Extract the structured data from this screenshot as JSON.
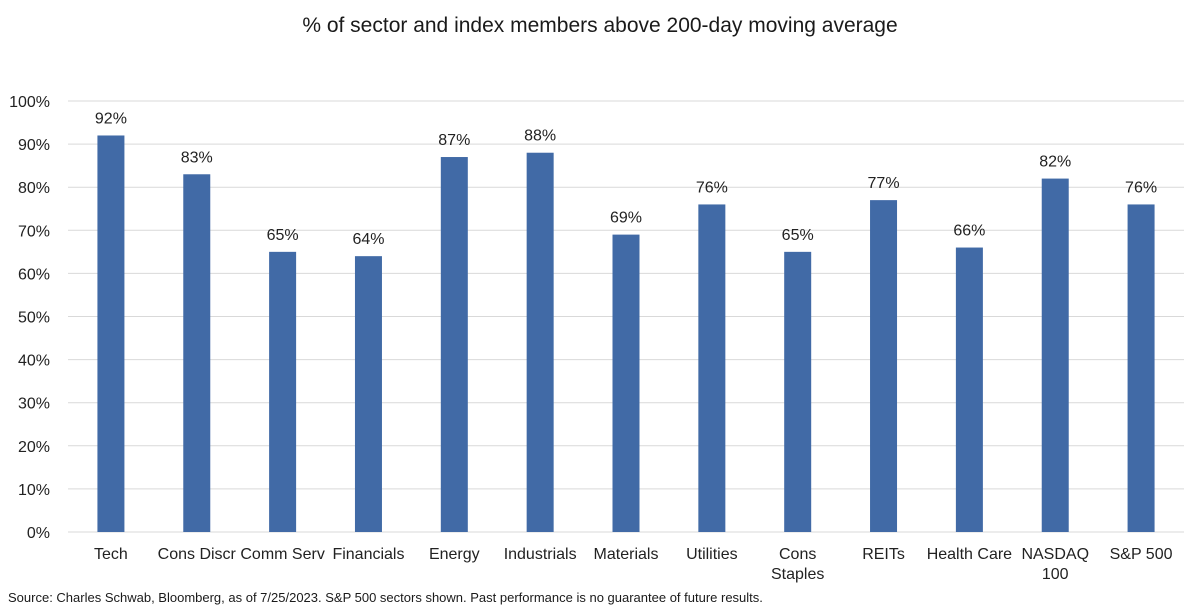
{
  "chart_data": {
    "type": "bar",
    "title": "% of sector and index members above 200-day moving average",
    "categories": [
      "Tech",
      "Cons Discr",
      "Comm Serv",
      "Financials",
      "Energy",
      "Industrials",
      "Materials",
      "Utilities",
      "Cons Staples",
      "REITs",
      "Health Care",
      "NASDAQ 100",
      "S&P 500"
    ],
    "category_lines": [
      [
        "Tech"
      ],
      [
        "Cons Discr"
      ],
      [
        "Comm Serv"
      ],
      [
        "Financials"
      ],
      [
        "Energy"
      ],
      [
        "Industrials"
      ],
      [
        "Materials"
      ],
      [
        "Utilities"
      ],
      [
        "Cons",
        "Staples"
      ],
      [
        "REITs"
      ],
      [
        "Health Care"
      ],
      [
        "NASDAQ",
        "100"
      ],
      [
        "S&P 500"
      ]
    ],
    "values": [
      92,
      83,
      65,
      64,
      87,
      88,
      69,
      76,
      65,
      77,
      66,
      82,
      76
    ],
    "data_labels": [
      "92%",
      "83%",
      "65%",
      "64%",
      "87%",
      "88%",
      "69%",
      "76%",
      "65%",
      "77%",
      "66%",
      "82%",
      "76%"
    ],
    "y_ticks": [
      0,
      10,
      20,
      30,
      40,
      50,
      60,
      70,
      80,
      90,
      100
    ],
    "y_tick_labels": [
      "0%",
      "10%",
      "20%",
      "30%",
      "40%",
      "50%",
      "60%",
      "70%",
      "80%",
      "90%",
      "100%"
    ],
    "ylim": [
      0,
      100
    ],
    "xlabel": "",
    "ylabel": "",
    "grid": true,
    "legend": "none",
    "bar_color": "#416aa6",
    "grid_color": "#d9d9d9"
  },
  "footer": {
    "source": "Source: Charles Schwab, Bloomberg, as of 7/25/2023.  S&P 500 sectors shown. Past performance is no guarantee of future results."
  }
}
